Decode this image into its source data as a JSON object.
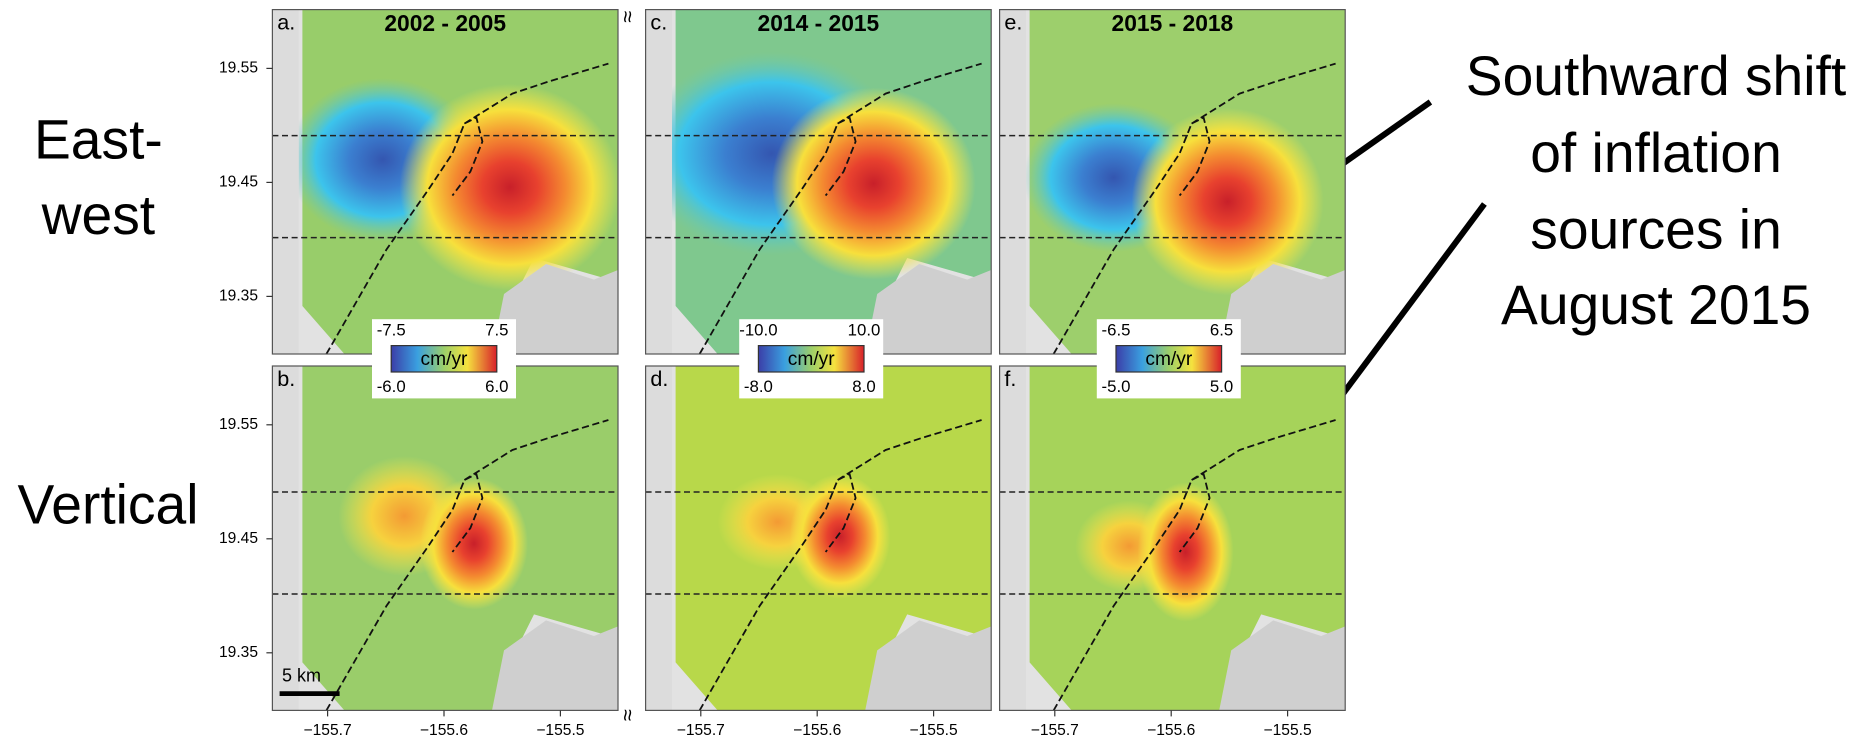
{
  "row_labels": {
    "east_west": [
      "East-",
      "west"
    ],
    "vertical": "Vertical"
  },
  "annotation": [
    "Southward shift",
    "of inflation",
    "sources in",
    "August 2015"
  ],
  "panels": [
    {
      "letter": "a.",
      "title": "2002 - 2005"
    },
    {
      "letter": "c.",
      "title": "2014 - 2015"
    },
    {
      "letter": "e.",
      "title": "2015 - 2018"
    },
    {
      "letter": "b."
    },
    {
      "letter": "d."
    },
    {
      "letter": "f."
    }
  ],
  "colorbars": [
    {
      "top": [
        "-7.5",
        "7.5"
      ],
      "bottom": [
        "-6.0",
        "6.0"
      ],
      "unit": "cm/yr"
    },
    {
      "top": [
        "-10.0",
        "10.0"
      ],
      "bottom": [
        "-8.0",
        "8.0"
      ],
      "unit": "cm/yr"
    },
    {
      "top": [
        "-6.5",
        "6.5"
      ],
      "bottom": [
        "-5.0",
        "5.0"
      ],
      "unit": "cm/yr"
    }
  ],
  "y_ticks": [
    "19.55",
    "19.45",
    "19.35"
  ],
  "x_ticks": [
    "−155.7",
    "−155.6",
    "−155.5"
  ],
  "scale_bar": "5 km",
  "break_symbol": "≈"
}
